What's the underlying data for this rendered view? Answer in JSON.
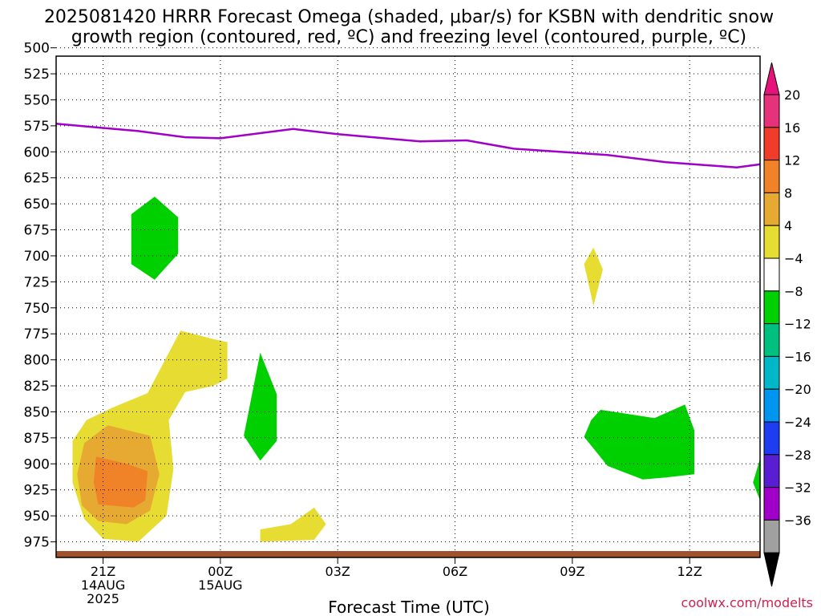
{
  "chart_data": {
    "type": "cross-section",
    "title_line1": "2025081420 HRRR Forecast Omega (shaded, μbar/s) for KSBN with dendritic snow",
    "title_line2": "growth region (contoured, red, ºC) and freezing level (contoured, purple, ºC)",
    "xlabel": "Forecast Time (UTC)",
    "credit": "coolwx.com/modelts",
    "x_range_hours": [
      -2,
      28
    ],
    "y_range_hPa": [
      508,
      990
    ],
    "y_ticks": [
      500,
      525,
      550,
      575,
      600,
      625,
      650,
      675,
      700,
      725,
      750,
      775,
      800,
      825,
      850,
      875,
      900,
      925,
      950,
      975
    ],
    "x_ticks": [
      {
        "hour": 0,
        "label": "21Z",
        "sub1": "14AUG",
        "sub2": "2025"
      },
      {
        "hour": 5,
        "label": "00Z",
        "sub1": "15AUG",
        "sub2": ""
      },
      {
        "hour": 10,
        "label": "03Z",
        "sub1": "",
        "sub2": ""
      },
      {
        "hour": 15,
        "label": "06Z",
        "sub1": "",
        "sub2": ""
      },
      {
        "hour": 20,
        "label": "09Z",
        "sub1": "",
        "sub2": ""
      },
      {
        "hour": 25,
        "label": "12Z",
        "sub1": "",
        "sub2": ""
      }
    ],
    "freezing_level": {
      "color": "#a000c8",
      "points": [
        [
          -2,
          573
        ],
        [
          1.5,
          580
        ],
        [
          3.5,
          586
        ],
        [
          5,
          587
        ],
        [
          6.7,
          582
        ],
        [
          8.1,
          578
        ],
        [
          10,
          583
        ],
        [
          13.5,
          590
        ],
        [
          15.5,
          589
        ],
        [
          17.5,
          597
        ],
        [
          21.5,
          603
        ],
        [
          24,
          610
        ],
        [
          27,
          615
        ],
        [
          28,
          612
        ]
      ]
    },
    "omega_regions": [
      {
        "level": "-8",
        "color": "#00d000",
        "points": [
          [
            1.2,
            660
          ],
          [
            2.2,
            643
          ],
          [
            3.2,
            663
          ],
          [
            3.2,
            698
          ],
          [
            2.2,
            723
          ],
          [
            1.2,
            708
          ]
        ]
      },
      {
        "level": "-8",
        "color": "#00d000",
        "points": [
          [
            6.7,
            793
          ],
          [
            7.4,
            833
          ],
          [
            7.4,
            878
          ],
          [
            6.7,
            897
          ],
          [
            6.0,
            873
          ]
        ]
      },
      {
        "level": "-8",
        "color": "#00d000",
        "points": [
          [
            21.2,
            848
          ],
          [
            23.5,
            856
          ],
          [
            24.8,
            843
          ],
          [
            25.2,
            868
          ],
          [
            25.2,
            910
          ],
          [
            24.0,
            913
          ],
          [
            23.0,
            915
          ],
          [
            21.5,
            902
          ],
          [
            20.5,
            874
          ],
          [
            20.8,
            858
          ]
        ]
      },
      {
        "level": "-8",
        "color": "#00d000",
        "points": [
          [
            28,
            895
          ],
          [
            27.7,
            918
          ],
          [
            28,
            935
          ]
        ]
      },
      {
        "level": "4",
        "color": "#e6dc32",
        "points": [
          [
            0.4,
            846
          ],
          [
            1.9,
            832
          ],
          [
            3.3,
            772
          ],
          [
            4.7,
            780
          ],
          [
            5.3,
            783
          ],
          [
            5.3,
            818
          ],
          [
            4.7,
            825
          ],
          [
            3.5,
            831
          ],
          [
            2.8,
            858
          ],
          [
            3.0,
            905
          ],
          [
            2.7,
            950
          ],
          [
            1.5,
            975
          ],
          [
            0,
            972
          ],
          [
            -0.8,
            953
          ],
          [
            -1.3,
            918
          ],
          [
            -1.3,
            878
          ],
          [
            -0.7,
            858
          ]
        ]
      },
      {
        "level": "4",
        "color": "#e6dc32",
        "points": [
          [
            20.9,
            692
          ],
          [
            21.3,
            713
          ],
          [
            20.9,
            748
          ],
          [
            20.5,
            708
          ]
        ]
      },
      {
        "level": "4",
        "color": "#e6dc32",
        "points": [
          [
            6.7,
            963
          ],
          [
            8.0,
            958
          ],
          [
            9.0,
            942
          ],
          [
            9.5,
            958
          ],
          [
            9.0,
            973
          ],
          [
            6.7,
            975
          ]
        ]
      },
      {
        "level": "8",
        "color": "#e6aa32",
        "points": [
          [
            -0.8,
            880
          ],
          [
            0.2,
            863
          ],
          [
            2.0,
            873
          ],
          [
            2.4,
            910
          ],
          [
            2.0,
            945
          ],
          [
            1.0,
            958
          ],
          [
            -0.2,
            955
          ],
          [
            -0.9,
            940
          ],
          [
            -1.1,
            910
          ]
        ]
      },
      {
        "level": "12",
        "color": "#f08228",
        "points": [
          [
            -0.3,
            893
          ],
          [
            1.0,
            900
          ],
          [
            1.9,
            907
          ],
          [
            1.8,
            935
          ],
          [
            1.3,
            942
          ],
          [
            -0.2,
            939
          ],
          [
            -0.4,
            918
          ]
        ]
      }
    ],
    "terrain_color": "#a0522d",
    "colorbar": [
      {
        "label": "20",
        "color": "#e6327a"
      },
      {
        "label": "16",
        "color": "#f03c28"
      },
      {
        "label": "12",
        "color": "#f08228"
      },
      {
        "label": "8",
        "color": "#e6aa32"
      },
      {
        "label": "4",
        "color": "#e6dc32"
      },
      {
        "label": "−4",
        "color": "#ffffff"
      },
      {
        "label": "−8",
        "color": "#00d000"
      },
      {
        "label": "−12",
        "color": "#00c080"
      },
      {
        "label": "−16",
        "color": "#00b8c8"
      },
      {
        "label": "−20",
        "color": "#0096f0"
      },
      {
        "label": "−24",
        "color": "#1e3cf0"
      },
      {
        "label": "−28",
        "color": "#5a1ed2"
      },
      {
        "label": "−32",
        "color": "#a000c8"
      },
      {
        "label": "−36",
        "color": "#a0a0a0"
      }
    ],
    "colorbar_top_color": "#e6147a",
    "colorbar_bottom_color": "#000000"
  }
}
